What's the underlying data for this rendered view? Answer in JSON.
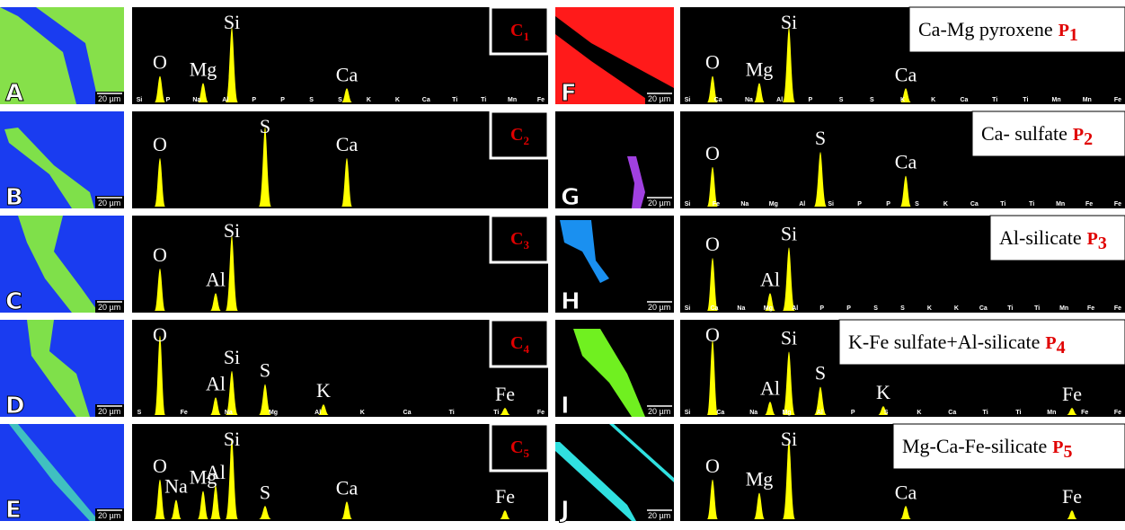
{
  "left": [
    {
      "map_label": "A",
      "scale_bar": "20 µm",
      "tag": "C",
      "tag_sub": "1",
      "elements": [
        "O",
        "Mg",
        "Si",
        "Ca"
      ],
      "minor": [
        "Si",
        "P",
        "Na",
        "Al",
        "P",
        "P",
        "S",
        "S",
        "K",
        "K",
        "Ca",
        "Ti",
        "Ti",
        "Mn",
        "Fe"
      ]
    },
    {
      "map_label": "B",
      "scale_bar": "20 µm",
      "tag": "C",
      "tag_sub": "2",
      "elements": [
        "O",
        "S",
        "Ca"
      ],
      "minor": []
    },
    {
      "map_label": "C",
      "scale_bar": "20 µm",
      "tag": "C",
      "tag_sub": "3",
      "elements": [
        "O",
        "Al",
        "Si"
      ],
      "minor": []
    },
    {
      "map_label": "D",
      "scale_bar": "20 µm",
      "tag": "C",
      "tag_sub": "4",
      "elements": [
        "O",
        "Al",
        "Si",
        "S",
        "K",
        "Fe"
      ],
      "minor": [
        "S",
        "Fe",
        "Na",
        "Mg",
        "Al",
        "K",
        "Ca",
        "Ti",
        "Ti",
        "Fe"
      ]
    },
    {
      "map_label": "E",
      "scale_bar": "20 µm",
      "tag": "C",
      "tag_sub": "5",
      "elements": [
        "O",
        "Na",
        "Mg",
        "Al",
        "Si",
        "S",
        "Ca",
        "Fe"
      ],
      "minor": []
    }
  ],
  "right": [
    {
      "map_label": "F",
      "scale_bar": "20 µm",
      "title": "Ca-Mg pyroxene",
      "tag": "P",
      "tag_sub": "1",
      "elements": [
        "O",
        "Mg",
        "Si",
        "Ca"
      ],
      "minor": [
        "Si",
        "Ca",
        "Na",
        "Al",
        "P",
        "S",
        "S",
        "K",
        "K",
        "Ca",
        "Ti",
        "Ti",
        "Mn",
        "Mn",
        "Fe"
      ]
    },
    {
      "map_label": "G",
      "scale_bar": "20 µm",
      "title": "Ca- sulfate",
      "tag": "P",
      "tag_sub": "2",
      "elements": [
        "O",
        "S",
        "Ca"
      ],
      "minor": [
        "Si",
        "Fe",
        "Na",
        "Mg",
        "Al",
        "Si",
        "P",
        "P",
        "S",
        "K",
        "Ca",
        "Ti",
        "Ti",
        "Mn",
        "Fe",
        "Fe"
      ]
    },
    {
      "map_label": "H",
      "scale_bar": "20 µm",
      "title": "Al-silicate",
      "tag": "P",
      "tag_sub": "3",
      "elements": [
        "O",
        "Al",
        "Si"
      ],
      "minor": [
        "Si",
        "Ca",
        "Na",
        "Mg",
        "Al",
        "P",
        "P",
        "S",
        "S",
        "K",
        "K",
        "Ca",
        "Ti",
        "Ti",
        "Mn",
        "Fe",
        "Fe"
      ]
    },
    {
      "map_label": "I",
      "scale_bar": "20 µm",
      "title": "K-Fe sulfate+Al-silicate",
      "tag": "P",
      "tag_sub": "4",
      "elements": [
        "O",
        "Al",
        "Si",
        "S",
        "K",
        "Fe"
      ],
      "minor": [
        "Si",
        "Ca",
        "Na",
        "Mg",
        "Al",
        "P",
        "S",
        "K",
        "Ca",
        "Ti",
        "Ti",
        "Mn",
        "Fe",
        "Fe"
      ]
    },
    {
      "map_label": "J",
      "scale_bar": "20 µm",
      "title": "Mg-Ca-Fe-silicate",
      "tag": "P",
      "tag_sub": "5",
      "elements": [
        "O",
        "Mg",
        "Si",
        "Ca",
        "Fe"
      ],
      "minor": []
    }
  ]
}
